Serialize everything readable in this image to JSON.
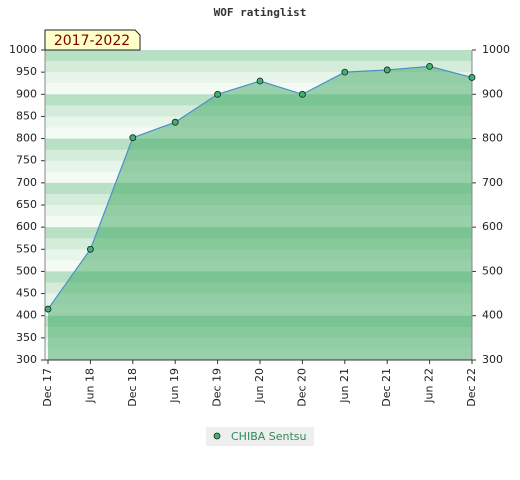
{
  "chart_data": {
    "type": "area",
    "title": "WOF ratinglist",
    "annotation": "2017-2022",
    "categories": [
      "Dec 17",
      "Jun 18",
      "Dec 18",
      "Jun 19",
      "Dec 19",
      "Jun 20",
      "Dec 20",
      "Jun 21",
      "Dec 21",
      "Jun 22",
      "Dec 22"
    ],
    "series": [
      {
        "name": "CHIBA Sentsu",
        "color": "#4a90c8",
        "values": [
          415,
          550,
          802,
          837,
          900,
          930,
          900,
          950,
          955,
          963,
          938
        ]
      }
    ],
    "ylim": [
      300,
      1000
    ],
    "yticks": [
      300,
      350,
      400,
      450,
      500,
      550,
      600,
      650,
      700,
      750,
      800,
      850,
      900,
      950,
      1000
    ],
    "y2lim": [
      300,
      1000
    ],
    "y2ticks": [
      300,
      400,
      500,
      600,
      700,
      800,
      900,
      1000
    ],
    "legend": "bottom"
  }
}
